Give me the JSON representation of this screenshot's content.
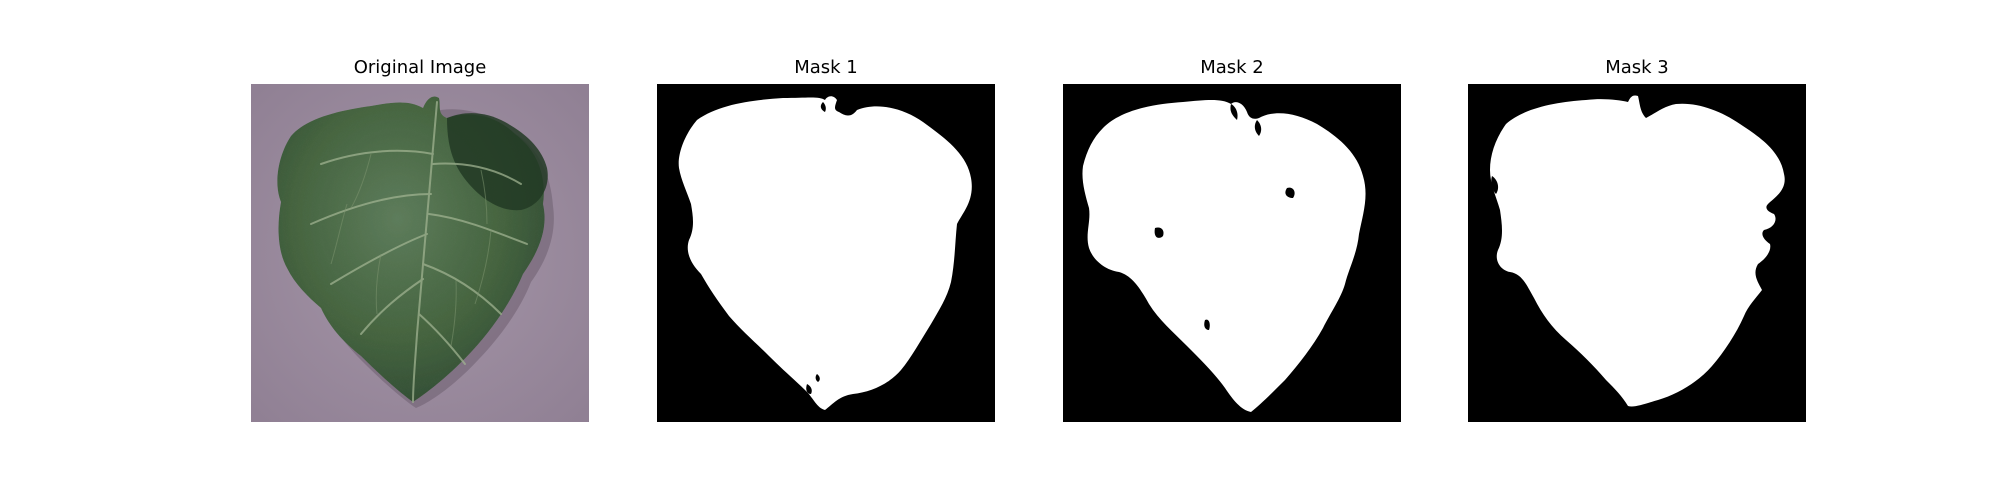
{
  "figure": {
    "panels": [
      {
        "title": "Original Image"
      },
      {
        "title": "Mask 1"
      },
      {
        "title": "Mask 2"
      },
      {
        "title": "Mask 3"
      }
    ]
  },
  "colors": {
    "background_paper": "#9d8da0",
    "leaf_dark": "#2f4a33",
    "leaf_mid": "#4f6e4f",
    "leaf_light": "#6f8a6a",
    "vein": "#8aa07e",
    "mask_background": "#000000",
    "mask_foreground": "#ffffff"
  }
}
